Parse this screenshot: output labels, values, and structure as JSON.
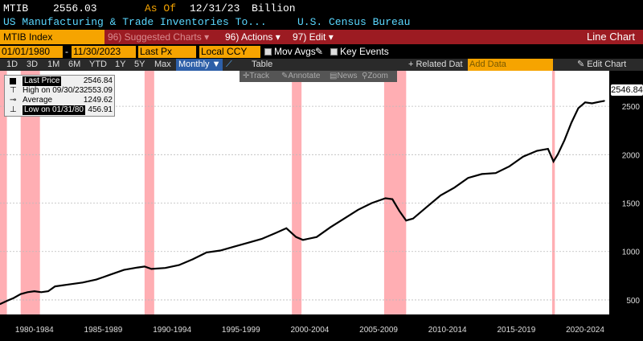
{
  "header": {
    "ticker": "MTIB",
    "price": "2556.03",
    "as_of_label": "As Of",
    "as_of_date": "12/31/23",
    "unit": "Billion",
    "description": "US Manufacturing & Trade Inventories To...",
    "source": "U.S. Census Bureau"
  },
  "function_bar": {
    "index_name": "MTIB Index",
    "suggested": "96) Suggested Charts",
    "actions": "96) Actions",
    "edit": "97) Edit",
    "chart_type": "Line Chart"
  },
  "controls": {
    "start_date": "01/01/1980",
    "end_date": "11/30/2023",
    "field": "Last Px",
    "currency": "Local CCY",
    "mov_avgs": "Mov Avgs",
    "key_events": "Key Events",
    "periods": [
      "1D",
      "3D",
      "1M",
      "6M",
      "YTD",
      "1Y",
      "5Y",
      "Max"
    ],
    "frequency": "Monthly",
    "table": "Table",
    "related": "+ Related Dat",
    "add_data_placeholder": "Add Data",
    "edit_chart": "Edit Chart"
  },
  "toolbar": {
    "track": "Track",
    "annotate": "Annotate",
    "news": "News",
    "zoom": "Zoom"
  },
  "legend": [
    {
      "name": "Last Price",
      "value": "2546.84"
    },
    {
      "name": "High on 09/30/23",
      "value": "2553.09"
    },
    {
      "name": "Average",
      "value": "1249.62"
    },
    {
      "name": "Low on 01/31/80",
      "value": "456.91"
    }
  ],
  "last_tag": "2546.84",
  "colors": {
    "accent": "#f6a400",
    "bar": "#9c1b22",
    "recession": "#ff9aa0",
    "line": "#000000"
  },
  "chart_data": {
    "type": "line",
    "title": "",
    "xlim": [
      1980.0,
      2024.25
    ],
    "ylim": [
      350,
      2750
    ],
    "ygrid": [
      500,
      1000,
      1500,
      2000,
      2500
    ],
    "ytick_labels": [
      "500",
      "1000",
      "1500",
      "2000",
      "2500"
    ],
    "xtick_labels": [
      "1980-1984",
      "1985-1989",
      "1990-1994",
      "1995-1999",
      "2000-2004",
      "2005-2009",
      "2010-2014",
      "2015-2019",
      "2020-2024"
    ],
    "recessions": [
      [
        1980.0,
        1980.5
      ],
      [
        1981.5,
        1982.9
      ],
      [
        1990.5,
        1991.2
      ],
      [
        2001.2,
        2001.9
      ],
      [
        2007.9,
        2009.5
      ],
      [
        2020.1,
        2020.3
      ]
    ],
    "series": [
      {
        "x": [
          1980.0,
          1980.5,
          1981.0,
          1981.5,
          1982.0,
          1982.5,
          1983.0,
          1983.5,
          1984.0,
          1985.0,
          1986.0,
          1987.0,
          1988.0,
          1989.0,
          1990.0,
          1990.5,
          1991.0,
          1992.0,
          1993.0,
          1994.0,
          1995.0,
          1996.0,
          1997.0,
          1998.0,
          1999.0,
          2000.0,
          2000.8,
          2001.5,
          2002.0,
          2003.0,
          2004.0,
          2005.0,
          2006.0,
          2007.0,
          2008.0,
          2008.5,
          2009.0,
          2009.5,
          2010.0,
          2011.0,
          2012.0,
          2013.0,
          2014.0,
          2015.0,
          2016.0,
          2017.0,
          2018.0,
          2019.0,
          2019.8,
          2020.2,
          2020.5,
          2021.0,
          2021.5,
          2022.0,
          2022.5,
          2023.0,
          2023.5,
          2023.9
        ],
        "values": [
          457,
          490,
          520,
          560,
          580,
          590,
          580,
          590,
          640,
          660,
          680,
          710,
          760,
          810,
          835,
          845,
          820,
          830,
          860,
          920,
          990,
          1010,
          1050,
          1090,
          1130,
          1190,
          1240,
          1150,
          1120,
          1150,
          1250,
          1340,
          1430,
          1500,
          1550,
          1540,
          1420,
          1320,
          1340,
          1460,
          1580,
          1660,
          1760,
          1800,
          1810,
          1880,
          1980,
          2040,
          2060,
          1930,
          2000,
          2150,
          2330,
          2480,
          2540,
          2530,
          2545,
          2556
        ]
      }
    ]
  }
}
